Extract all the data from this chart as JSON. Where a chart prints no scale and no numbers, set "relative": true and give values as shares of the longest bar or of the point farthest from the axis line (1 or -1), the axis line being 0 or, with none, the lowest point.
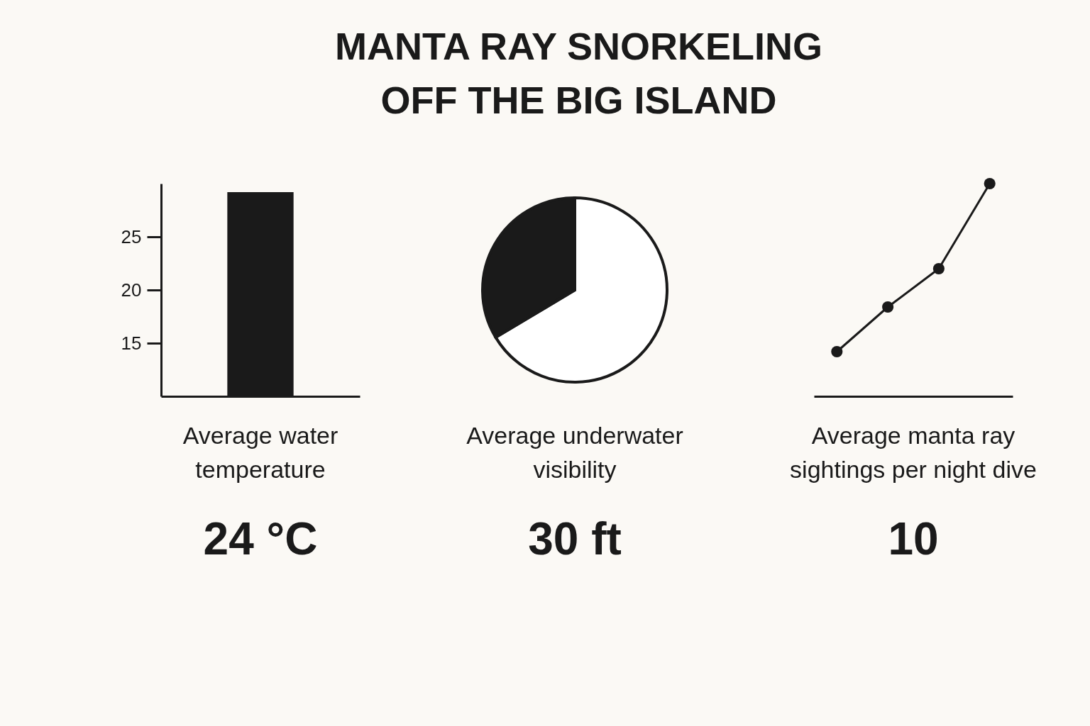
{
  "chart_data": [
    {
      "type": "bar",
      "xlabel": "Average water\ntemperature",
      "annotations": [
        "24 °C"
      ],
      "categories": [
        null
      ],
      "values": [
        29.2
      ],
      "color": "#1a1a1a",
      "ylim": [
        10,
        30
      ],
      "yticks": [
        15,
        20,
        25
      ]
    },
    {
      "type": "pie",
      "title": "MANTA RAY SNORKELING\nOFF THE BIG ISLAND",
      "xlabel": "Average underwater\nvisibility",
      "annotations": [
        "30 ft"
      ],
      "categories": [
        null,
        null
      ],
      "values": [
        66.4,
        33.6
      ],
      "colors": [
        "#ffffff",
        "#1a1a1a"
      ]
    },
    {
      "type": "line",
      "xlabel": "Average manta ray\nsightings per night dive",
      "annotations": [
        "10"
      ],
      "categories": [
        null,
        null,
        null,
        null
      ],
      "relative": true,
      "marker": "circle",
      "series": [
        {
          "color": "#1a1a1a",
          "values": [
            0.21,
            0.42,
            0.6,
            1
          ]
        }
      ]
    }
  ]
}
